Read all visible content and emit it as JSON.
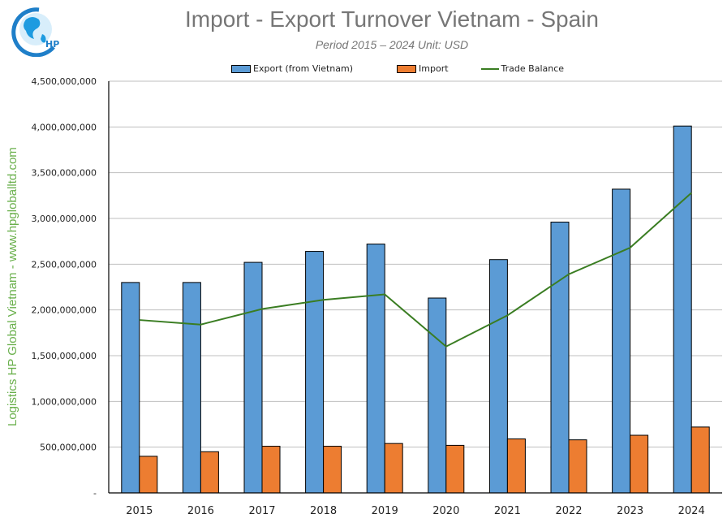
{
  "header": {
    "title": "Import - Export Turnover Vietnam - Spain",
    "subtitle": "Period 2015 – 2024  Unit: USD",
    "logo_text": "HP",
    "watermark": "Logistics HP Global Vietnam - www.hpgloballtd.com"
  },
  "legend": [
    {
      "label": "Export (from Vietnam)",
      "color": "#5b9bd5",
      "kind": "bar"
    },
    {
      "label": "Import",
      "color": "#ed7d31",
      "kind": "bar"
    },
    {
      "label": "Trade Balance",
      "color": "#3a7d22",
      "kind": "line"
    }
  ],
  "chart_data": {
    "type": "bar",
    "title": "Import - Export Turnover Vietnam - Spain",
    "subtitle": "Period 2015 – 2024  Unit: USD",
    "xlabel": "",
    "ylabel": "",
    "ylim": [
      0,
      4500000000
    ],
    "yticks": [
      0,
      500000000,
      1000000000,
      1500000000,
      2000000000,
      2500000000,
      3000000000,
      3500000000,
      4000000000,
      4500000000
    ],
    "ytick_labels": [
      "-",
      "500,000,000",
      "1,000,000,000",
      "1,500,000,000",
      "2,000,000,000",
      "2,500,000,000",
      "3,000,000,000",
      "3,500,000,000",
      "4,000,000,000",
      "4,500,000,000"
    ],
    "grid": true,
    "legend_position": "top",
    "categories": [
      "2015",
      "2016",
      "2017",
      "2018",
      "2019",
      "2020",
      "2021",
      "2022",
      "2023",
      "2024"
    ],
    "series": [
      {
        "name": "Export (from Vietnam)",
        "type": "bar",
        "color": "#5b9bd5",
        "values": [
          2300000000,
          2300000000,
          2520000000,
          2640000000,
          2720000000,
          2130000000,
          2550000000,
          2960000000,
          3320000000,
          4010000000
        ]
      },
      {
        "name": "Import",
        "type": "bar",
        "color": "#ed7d31",
        "values": [
          400000000,
          450000000,
          510000000,
          510000000,
          540000000,
          520000000,
          590000000,
          580000000,
          630000000,
          720000000
        ]
      },
      {
        "name": "Trade Balance",
        "type": "line",
        "color": "#3a7d22",
        "values": [
          1890000000,
          1840000000,
          2010000000,
          2110000000,
          2170000000,
          1600000000,
          1940000000,
          2390000000,
          2680000000,
          3280000000
        ]
      }
    ]
  }
}
